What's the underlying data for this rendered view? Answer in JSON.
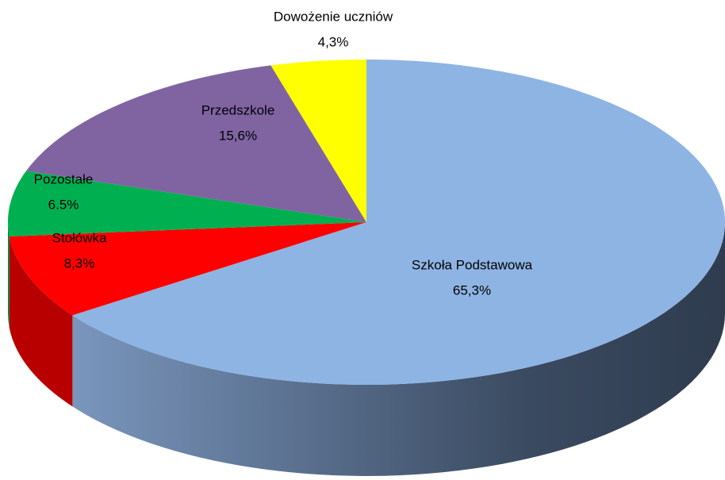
{
  "chart_data": {
    "type": "pie3d",
    "categories": [
      "Szkoła Podstawowa",
      "Stołówka",
      "Pozostałe",
      "Przedszkole",
      "Dowożenie uczniów"
    ],
    "values": [
      65.3,
      8.3,
      6.5,
      15.6,
      4.3
    ],
    "value_labels": [
      "65,3%",
      "8,3%",
      "6.5%",
      "15,6%",
      "4,3%"
    ],
    "colors": [
      "#8eb4e3",
      "#ff0000",
      "#00b050",
      "#8064a2",
      "#ffff00"
    ]
  }
}
